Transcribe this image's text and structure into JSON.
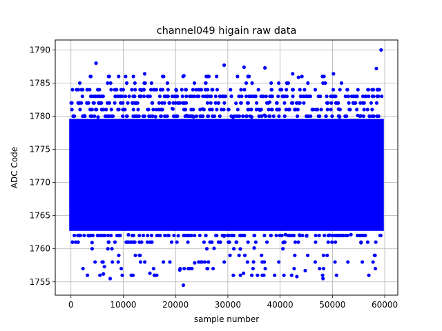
{
  "chart_data": {
    "type": "scatter",
    "title": "channel049 higain raw data",
    "xlabel": "sample number",
    "ylabel": "ADC Code",
    "xlim": [
      -3000,
      62500
    ],
    "ylim": [
      1753,
      1791.5
    ],
    "xticks": [
      0,
      10000,
      20000,
      30000,
      40000,
      50000,
      60000
    ],
    "yticks": [
      1755,
      1760,
      1765,
      1770,
      1775,
      1780,
      1785,
      1790
    ],
    "grid": true,
    "marker_color": "#0000ff",
    "series": [
      {
        "x_range": [
          0,
          59500
        ],
        "band_core": [
          1762,
          1784
        ],
        "note_points": [
          {
            "x": 21500,
            "y": 1754.5
          },
          {
            "x": 7500,
            "y": 1755.5
          },
          {
            "x": 48200,
            "y": 1755.5
          },
          {
            "x": 43200,
            "y": 1755.8
          },
          {
            "x": 6200,
            "y": 1756.2
          },
          {
            "x": 15100,
            "y": 1756.3
          },
          {
            "x": 33000,
            "y": 1756.3
          },
          {
            "x": 44800,
            "y": 1756.7
          },
          {
            "x": 6400,
            "y": 1757.3
          },
          {
            "x": 20800,
            "y": 1756.8
          },
          {
            "x": 4800,
            "y": 1788.0
          },
          {
            "x": 29300,
            "y": 1787.7
          },
          {
            "x": 33100,
            "y": 1787.4
          },
          {
            "x": 37100,
            "y": 1787.3
          },
          {
            "x": 58400,
            "y": 1787.2
          },
          {
            "x": 59300,
            "y": 1790.0
          },
          {
            "x": 50200,
            "y": 1786.4
          },
          {
            "x": 42400,
            "y": 1786.4
          },
          {
            "x": 14100,
            "y": 1786.4
          },
          {
            "x": 21600,
            "y": 1786.1
          }
        ]
      }
    ]
  }
}
